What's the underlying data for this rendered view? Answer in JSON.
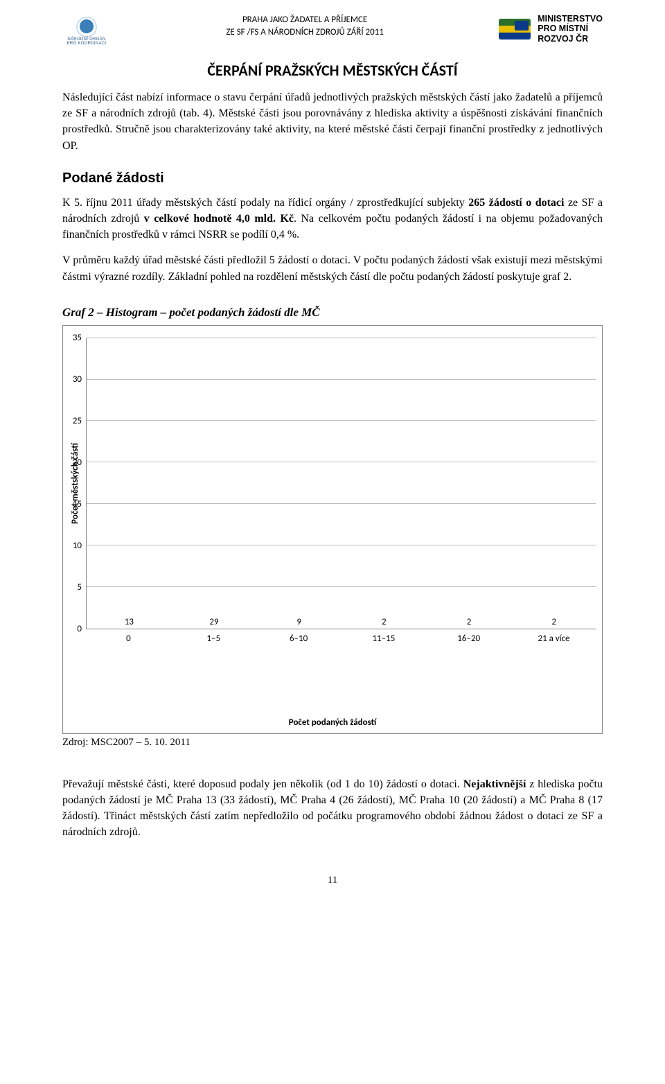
{
  "header": {
    "center_line1": "PRAHA JAKO ŽADATEL A PŘÍJEMCE",
    "center_line2": "ZE SF /FS A NÁRODNÍCH ZDROJŮ ZÁŘÍ 2011",
    "left_logo_caption": "NÁRODNÍ ORGÁN PRO KOORDINACI",
    "mmr_line1": "MINISTERSTVO",
    "mmr_line2": "PRO MÍSTNÍ",
    "mmr_line3": "ROZVOJ ČR"
  },
  "title": "ČERPÁNÍ PRAŽSKÝCH MĚSTSKÝCH ČÁSTÍ",
  "para1": "Následující část nabízí informace o stavu čerpání úřadů jednotlivých pražských městských částí jako žadatelů a příjemců ze SF a národních zdrojů (tab. 4). Městské části jsou porovnávány z hlediska aktivity a úspěšnosti získávání finančních prostředků. Stručně jsou charakterizovány také aktivity, na které městské části čerpají finanční prostředky z jednotlivých OP.",
  "section_heading": "Podané žádosti",
  "para2_pre": "K 5. říjnu 2011 úřady městských částí podaly na řídicí orgány / zprostředkující subjekty ",
  "para2_b1": "265 žádostí o dotaci",
  "para2_mid1": " ze SF a národních zdrojů ",
  "para2_b2": "v celkové hodnotě 4,0 mld. Kč",
  "para2_post": ". Na celkovém počtu podaných žádostí i na objemu požadovaných finančních prostředků v rámci NSRR se podílí 0,4 %.",
  "para3": "V průměru každý úřad městské části předložil 5 žádostí o dotaci. V počtu podaných žádostí však existují mezi městskými částmi výrazné rozdíly. Základní pohled na rozdělení městských částí dle počtu podaných žádostí poskytuje graf 2.",
  "chart_heading": "Graf 2 – Histogram – počet podaných žádostí dle MČ",
  "chart": {
    "type": "bar",
    "y_label": "Počet městských částí",
    "x_label": "Počet podaných žádostí",
    "ylim_max": 35,
    "ytick_step": 5,
    "y_ticks": [
      35,
      30,
      25,
      20,
      15,
      10,
      5,
      0
    ],
    "categories": [
      "0",
      "1–5",
      "6–10",
      "11–15",
      "16–20",
      "21 a více"
    ],
    "values": [
      13,
      29,
      9,
      2,
      2,
      2
    ],
    "bar_color": "#bfbfbf",
    "grid_color": "#bfbfbf",
    "axis_color": "#888888",
    "background_color": "#ffffff",
    "value_fontsize": 13,
    "tick_fontsize": 13,
    "label_fontsize": 13,
    "bar_width_ratio": 0.48
  },
  "source": "Zdroj: MSC2007 – 5. 10. 2011",
  "para4_pre": "Převažují městské části, které doposud podaly jen několik (od 1 do 10) žádostí o dotaci. ",
  "para4_b1": "Nejaktivnější",
  "para4_post": " z hlediska počtu podaných žádostí je MČ Praha 13 (33 žádostí), MČ Praha 4 (26 žádostí), MČ Praha 10 (20 žádostí) a MČ Praha 8 (17 žádostí). Třináct městských částí zatím nepředložilo od počátku programového období žádnou žádost o dotaci ze SF a národních zdrojů.",
  "page_number": "11"
}
